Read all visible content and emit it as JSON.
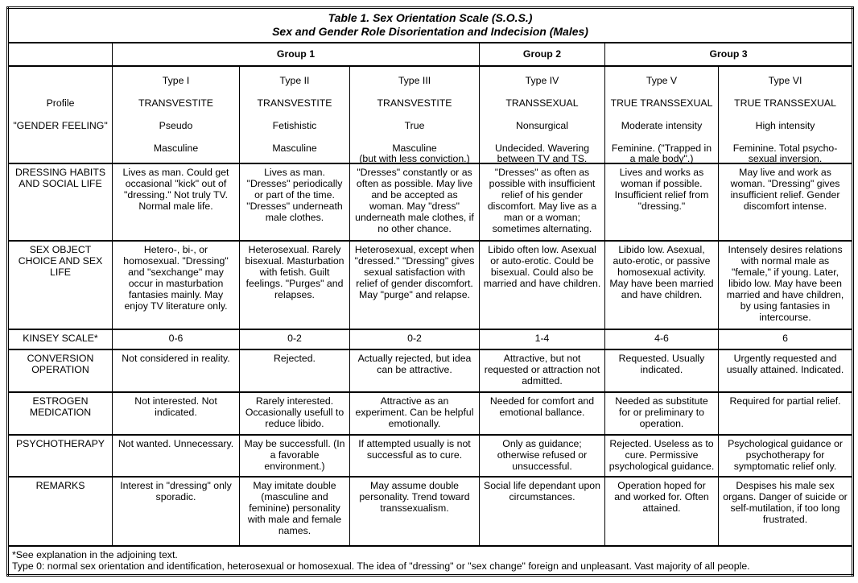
{
  "title": {
    "line1": "Table 1. Sex Orientation Scale (S.O.S.)",
    "line2": "Sex and Gender Role Disorientation and Indecision (Males)"
  },
  "groups": [
    {
      "label": "Group 1",
      "span": 3
    },
    {
      "label": "Group 2",
      "span": 1
    },
    {
      "label": "Group 3",
      "span": 2
    }
  ],
  "header": {
    "labels": [
      "",
      "Profile",
      "\"GENDER FEELING\"",
      ""
    ],
    "types": [
      [
        "Type I",
        "TRANSVESTITE",
        "Pseudo",
        "Masculine"
      ],
      [
        "Type II",
        "TRANSVESTITE",
        "Fetishistic",
        "Masculine"
      ],
      [
        "Type III",
        "TRANSVESTITE",
        "True",
        "Masculine\n(but with less conviction.)"
      ],
      [
        "Type IV",
        "TRANSSEXUAL",
        "Nonsurgical",
        "Undecided. Wavering\nbetween TV and TS."
      ],
      [
        "Type V",
        "TRUE TRANSSEXUAL",
        "Moderate intensity",
        "Feminine. (\"Trapped in\na male body\".)"
      ],
      [
        "Type VI",
        "TRUE TRANSSEXUAL",
        "High intensity",
        "Feminine. Total psycho-\nsexual inversion."
      ]
    ]
  },
  "rows": [
    {
      "label": "DRESSING HABITS AND SOCIAL LIFE",
      "cells": [
        "Lives as man. Could get occasional \"kick\" out of \"dressing.\" Not truly TV. Normal male life.",
        "Lives as man. \"Dresses\" periodically or part of the time. \"Dresses\" underneath male clothes.",
        "\"Dresses\" constantly or as often as possible. May live and be accepted as woman. May \"dress\" underneath male clothes, if no other chance.",
        "\"Dresses\" as often as possible with insufficient relief of his gender discomfort. May live as a man or a woman; sometimes alternating.",
        "Lives and works as woman if possible. Insufficient relief from \"dressing.\"",
        "May live and work as woman. \"Dressing\" gives insufficient relief. Gender discomfort intense."
      ]
    },
    {
      "label": "SEX OBJECT CHOICE AND SEX LIFE",
      "cells": [
        "Hetero-, bi-, or homosexual. \"Dressing\" and \"sexchange\" may occur in masturbation fantasies mainly. May enjoy TV literature only.",
        "Heterosexual. Rarely bisexual. Masturbation with fetish. Guilt feelings. \"Purges\" and relapses.",
        "Heterosexual, except when \"dressed.\" \"Dressing\" gives sexual satisfaction with relief of gender discomfort. May \"purge\" and relapse.",
        "Libido often low. Asexual or auto-erotic. Could be bisexual. Could also be married and have children.",
        "Libido low. Asexual, auto-erotic, or passive homosexual activity. May have been married and have children.",
        "Intensely desires relations with normal male as \"female,\" if young. Later, libido low. May have been married and have children, by using fantasies in intercourse."
      ]
    },
    {
      "label": "KINSEY SCALE*",
      "cells": [
        "0-6",
        "0-2",
        "0-2",
        "1-4",
        "4-6",
        "6"
      ]
    },
    {
      "label": "CONVERSION OPERATION",
      "cells": [
        "Not considered in reality.",
        "Rejected.",
        "Actually rejected, but idea can be attractive.",
        "Attractive, but not requested or attraction not admitted.",
        "Requested. Usually indicated.",
        "Urgently requested and usually attained. Indicated."
      ]
    },
    {
      "label": "ESTROGEN MEDICATION",
      "cells": [
        "Not interested. Not indicated.",
        "Rarely interested. Occasionally usefull to reduce libido.",
        "Attractive as an experiment. Can be helpful emotionally.",
        "Needed for comfort and emotional ballance.",
        "Needed as substitute for or preliminary to operation.",
        "Required for partial relief."
      ]
    },
    {
      "label": "PSYCHOTHERAPY",
      "cells": [
        "Not wanted. Unnecessary.",
        "May be successfull. (In a favorable environment.)",
        "If attempted usually is not successful as to cure.",
        "Only as guidance; otherwise refused or unsuccessful.",
        "Rejected. Useless as to cure. Permissive psychological guidance.",
        "Psychological guidance or psychotherapy for symptomatic relief only."
      ]
    },
    {
      "label": "REMARKS",
      "cells": [
        "Interest in \"dressing\" only sporadic.",
        "May imitate double (masculine and feminine) personality with male and female names.",
        "May assume double personality. Trend toward transsexualism.",
        "Social life dependant upon circumstances.",
        "Operation hoped for and worked for. Often attained.",
        "Despises his male sex organs. Danger of suicide or self-mutilation, if too long frustrated."
      ]
    }
  ],
  "footnote": {
    "line1": "*See explanation in the adjoining text.",
    "line2": "Type 0: normal sex orientation and identification, heterosexual or homosexual. The idea of \"dressing\" or \"sex change\" foreign and unpleasant. Vast majority of all people."
  }
}
